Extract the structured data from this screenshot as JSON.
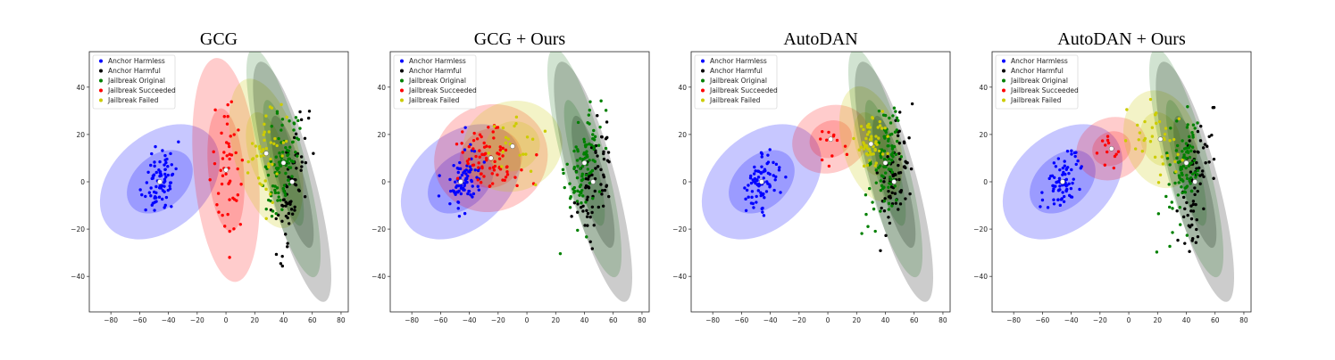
{
  "figure": {
    "description_free": true
  },
  "chart_data": [
    {
      "type": "scatter",
      "title": "GCG",
      "xlim": [
        -95,
        85
      ],
      "ylim": [
        -55,
        55
      ],
      "x_ticks": [
        "−80",
        "−60",
        "−40",
        "−20",
        "0",
        "20",
        "40",
        "60",
        "80"
      ],
      "x_tick_values": [
        -80,
        -60,
        -40,
        -20,
        0,
        20,
        40,
        60,
        80
      ],
      "y_ticks": [
        "40",
        "20",
        "0",
        "−20",
        "−40"
      ],
      "y_tick_values": [
        40,
        20,
        0,
        -20,
        -40
      ],
      "legend": [
        "Anchor Harmless",
        "Anchor Harmful",
        "Jailbreak Original",
        "Jailbreak Succeeded",
        "Jailbreak Failed"
      ],
      "colors": {
        "harmless": "#0000ff",
        "harmful": "#000000",
        "original": "#008000",
        "succeeded": "#ff0000",
        "failed": "#cccc00"
      },
      "clusters": [
        {
          "name": "Anchor Harmless",
          "key": "harmless",
          "center": [
            -46,
            0
          ],
          "spread": [
            5,
            7
          ],
          "angle": -45,
          "n": 80,
          "ellipse": {
            "w": 95,
            "h": 40,
            "angle": -42
          }
        },
        {
          "name": "Anchor Harmful",
          "key": "harmful",
          "center": [
            46,
            0
          ],
          "spread": [
            5,
            14
          ],
          "angle": -15,
          "n": 70,
          "ellipse": {
            "w": 32,
            "h": 105,
            "angle": -15
          }
        },
        {
          "name": "Jailbreak Original",
          "key": "original",
          "center": [
            40,
            8
          ],
          "spread": [
            5,
            13
          ],
          "angle": -15,
          "n": 90,
          "ellipse": {
            "w": 30,
            "h": 100,
            "angle": -15
          }
        },
        {
          "name": "Jailbreak Succeeded",
          "key": "succeeded",
          "center": [
            0,
            5
          ],
          "spread": [
            6,
            15
          ],
          "angle": -5,
          "n": 50,
          "ellipse": {
            "w": 45,
            "h": 95,
            "angle": -5
          }
        },
        {
          "name": "Jailbreak Failed",
          "key": "failed",
          "center": [
            28,
            12
          ],
          "spread": [
            6,
            10
          ],
          "angle": -15,
          "n": 45,
          "ellipse": {
            "w": 45,
            "h": 65,
            "angle": -15
          }
        }
      ]
    },
    {
      "type": "scatter",
      "title": "GCG + Ours",
      "xlim": [
        -95,
        85
      ],
      "ylim": [
        -55,
        55
      ],
      "x_ticks": [
        "−80",
        "−60",
        "−40",
        "−20",
        "0",
        "20",
        "40",
        "60",
        "80"
      ],
      "x_tick_values": [
        -80,
        -60,
        -40,
        -20,
        0,
        20,
        40,
        60,
        80
      ],
      "y_ticks": [
        "40",
        "20",
        "0",
        "−20",
        "−40"
      ],
      "y_tick_values": [
        40,
        20,
        0,
        -20,
        -40
      ],
      "legend": [
        "Anchor Harmless",
        "Anchor Harmful",
        "Jailbreak Original",
        "Jailbreak Succeeded",
        "Jailbreak Failed"
      ],
      "colors": {
        "harmless": "#0000ff",
        "harmful": "#000000",
        "original": "#008000",
        "succeeded": "#ff0000",
        "failed": "#cccc00"
      },
      "clusters": [
        {
          "name": "Anchor Harmless",
          "key": "harmless",
          "center": [
            -46,
            0
          ],
          "spread": [
            5,
            7
          ],
          "angle": -45,
          "n": 80,
          "ellipse": {
            "w": 95,
            "h": 40,
            "angle": -42
          }
        },
        {
          "name": "Anchor Harmful",
          "key": "harmful",
          "center": [
            46,
            0
          ],
          "spread": [
            5,
            14
          ],
          "angle": -15,
          "n": 70,
          "ellipse": {
            "w": 32,
            "h": 105,
            "angle": -15
          }
        },
        {
          "name": "Jailbreak Original",
          "key": "original",
          "center": [
            40,
            8
          ],
          "spread": [
            5,
            13
          ],
          "angle": -15,
          "n": 90,
          "ellipse": {
            "w": 30,
            "h": 100,
            "angle": -15
          }
        },
        {
          "name": "Jailbreak Succeeded",
          "key": "succeeded",
          "center": [
            -25,
            10
          ],
          "spread": [
            12,
            7
          ],
          "angle": -25,
          "n": 80,
          "ellipse": {
            "w": 80,
            "h": 45,
            "angle": -25
          }
        },
        {
          "name": "Jailbreak Failed",
          "key": "failed",
          "center": [
            -10,
            15
          ],
          "spread": [
            10,
            6
          ],
          "angle": -25,
          "n": 20,
          "ellipse": {
            "w": 70,
            "h": 38,
            "angle": -20
          }
        }
      ]
    },
    {
      "type": "scatter",
      "title": "AutoDAN",
      "xlim": [
        -95,
        85
      ],
      "ylim": [
        -55,
        55
      ],
      "x_ticks": [
        "−80",
        "−60",
        "−40",
        "−20",
        "0",
        "20",
        "40",
        "60",
        "80"
      ],
      "x_tick_values": [
        -80,
        -60,
        -40,
        -20,
        0,
        20,
        40,
        60,
        80
      ],
      "y_ticks": [
        "40",
        "20",
        "0",
        "−20",
        "−40"
      ],
      "y_tick_values": [
        40,
        20,
        0,
        -20,
        -40
      ],
      "legend": [
        "Anchor Harmless",
        "Anchor Harmful",
        "Jailbreak Original",
        "Jailbreak Succeeded",
        "Jailbreak Failed"
      ],
      "colors": {
        "harmless": "#0000ff",
        "harmful": "#000000",
        "original": "#008000",
        "succeeded": "#ff0000",
        "failed": "#cccc00"
      },
      "clusters": [
        {
          "name": "Anchor Harmless",
          "key": "harmless",
          "center": [
            -46,
            0
          ],
          "spread": [
            5,
            7
          ],
          "angle": -45,
          "n": 80,
          "ellipse": {
            "w": 95,
            "h": 40,
            "angle": -42
          }
        },
        {
          "name": "Anchor Harmful",
          "key": "harmful",
          "center": [
            46,
            0
          ],
          "spread": [
            5,
            14
          ],
          "angle": -15,
          "n": 70,
          "ellipse": {
            "w": 32,
            "h": 105,
            "angle": -15
          }
        },
        {
          "name": "Jailbreak Original",
          "key": "original",
          "center": [
            40,
            8
          ],
          "spread": [
            5,
            13
          ],
          "angle": -15,
          "n": 90,
          "ellipse": {
            "w": 30,
            "h": 100,
            "angle": -15
          }
        },
        {
          "name": "Jailbreak Succeeded",
          "key": "succeeded",
          "center": [
            2,
            18
          ],
          "spread": [
            6,
            4
          ],
          "angle": -25,
          "n": 12,
          "ellipse": {
            "w": 55,
            "h": 28,
            "angle": -25
          }
        },
        {
          "name": "Jailbreak Failed",
          "key": "failed",
          "center": [
            30,
            16
          ],
          "spread": [
            5,
            6
          ],
          "angle": -15,
          "n": 60,
          "ellipse": {
            "w": 40,
            "h": 50,
            "angle": -15
          }
        }
      ]
    },
    {
      "type": "scatter",
      "title": "AutoDAN + Ours",
      "xlim": [
        -95,
        85
      ],
      "ylim": [
        -55,
        55
      ],
      "x_ticks": [
        "−80",
        "−60",
        "−40",
        "−20",
        "0",
        "20",
        "40",
        "60",
        "80"
      ],
      "x_tick_values": [
        -80,
        -60,
        -40,
        -20,
        0,
        20,
        40,
        60,
        80
      ],
      "y_ticks": [
        "40",
        "20",
        "0",
        "−20",
        "−40"
      ],
      "y_tick_values": [
        40,
        20,
        0,
        -20,
        -40
      ],
      "legend": [
        "Anchor Harmless",
        "Anchor Harmful",
        "Jailbreak Original",
        "Jailbreak Succeeded",
        "Jailbreak Failed"
      ],
      "colors": {
        "harmless": "#0000ff",
        "harmful": "#000000",
        "original": "#008000",
        "succeeded": "#ff0000",
        "failed": "#cccc00"
      },
      "clusters": [
        {
          "name": "Anchor Harmless",
          "key": "harmless",
          "center": [
            -46,
            0
          ],
          "spread": [
            5,
            7
          ],
          "angle": -45,
          "n": 80,
          "ellipse": {
            "w": 95,
            "h": 40,
            "angle": -42
          }
        },
        {
          "name": "Anchor Harmful",
          "key": "harmful",
          "center": [
            46,
            0
          ],
          "spread": [
            5,
            14
          ],
          "angle": -15,
          "n": 70,
          "ellipse": {
            "w": 32,
            "h": 105,
            "angle": -15
          }
        },
        {
          "name": "Jailbreak Original",
          "key": "original",
          "center": [
            40,
            8
          ],
          "spread": [
            5,
            13
          ],
          "angle": -15,
          "n": 90,
          "ellipse": {
            "w": 30,
            "h": 100,
            "angle": -15
          }
        },
        {
          "name": "Jailbreak Succeeded",
          "key": "succeeded",
          "center": [
            -12,
            14
          ],
          "spread": [
            5,
            4
          ],
          "angle": -25,
          "n": 12,
          "ellipse": {
            "w": 50,
            "h": 26,
            "angle": -25
          }
        },
        {
          "name": "Jailbreak Failed",
          "key": "failed",
          "center": [
            22,
            18
          ],
          "spread": [
            8,
            7
          ],
          "angle": -15,
          "n": 35,
          "ellipse": {
            "w": 50,
            "h": 42,
            "angle": -15
          }
        }
      ]
    }
  ]
}
